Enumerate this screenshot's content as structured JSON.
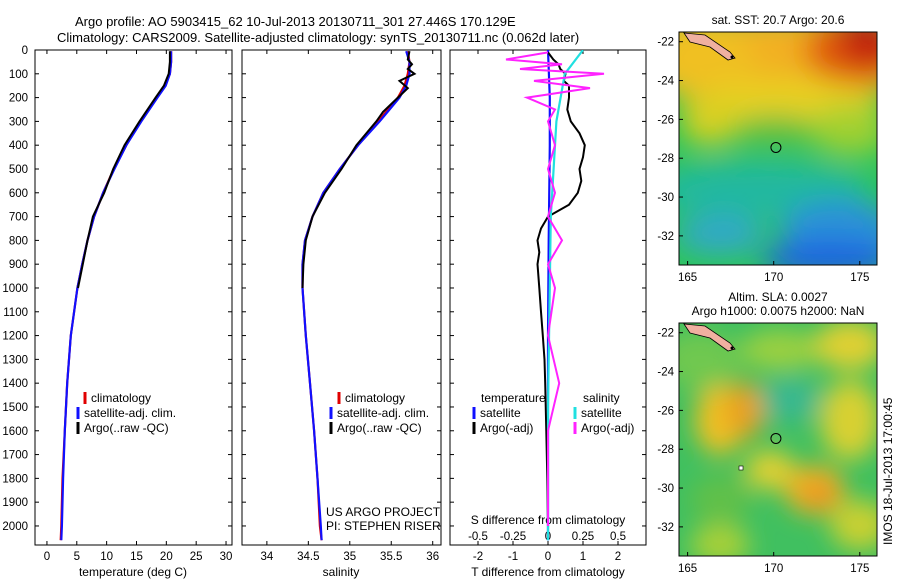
{
  "header": {
    "line1": "Argo profile: AO 5903415_62 10-Jul-2013 20130711_301 27.446S 170.129E",
    "line2": "Climatology: CARS2009. Satellite-adjusted climatology: synTS_20130711.nc (0.062d later)"
  },
  "side_stamp": "IMOS 18-Jul-2013 17:00:45",
  "credits": {
    "project": "US ARGO PROJECT",
    "pi": "PI: STEPHEN RISER"
  },
  "map_titles": {
    "sst": "sat. SST: 20.7 Argo: 20.6",
    "sla1": "Altim. SLA: 0.0027",
    "sla2": "Argo h1000: 0.0075 h2000: NaN"
  },
  "legend_panel_diff": {
    "temp_header": "temperature",
    "sal_header": "salinity",
    "satellite": "satellite",
    "argo": "Argo(-adj)",
    "s_axis_label": "S difference from climatology"
  },
  "colors": {
    "climatology": "#e00000",
    "satellite": "#1010ff",
    "argo": "#000000",
    "sal_satellite": "#20e0e0",
    "sal_argo": "#ff22ff"
  },
  "chart_data": [
    {
      "type": "line",
      "xlabel": "temperature (deg C)",
      "ylabel": "",
      "xlim": [
        -2,
        31
      ],
      "ylim": [
        2080,
        0
      ],
      "x_ticks": [
        0,
        5,
        10,
        15,
        20,
        25,
        30
      ],
      "y_ticks": [
        0,
        100,
        200,
        300,
        400,
        500,
        600,
        700,
        800,
        900,
        1000,
        1100,
        1200,
        1300,
        1400,
        1500,
        1600,
        1700,
        1800,
        1900,
        2000
      ],
      "legend": [
        "climatology",
        "satellite-adj. clim.",
        "Argo(..raw -QC)"
      ],
      "series": [
        {
          "name": "climatology",
          "depth": [
            5,
            50,
            100,
            150,
            200,
            300,
            400,
            500,
            600,
            700,
            800,
            900,
            1000,
            1200,
            1400,
            1600,
            1800,
            2000,
            2060
          ],
          "values": [
            20.8,
            20.8,
            20.6,
            19.8,
            18.4,
            15.6,
            13.3,
            11.2,
            9.4,
            7.9,
            6.8,
            5.9,
            5.1,
            4.0,
            3.4,
            3.0,
            2.6,
            2.4,
            2.3
          ]
        },
        {
          "name": "satellite-adj. clim.",
          "depth": [
            5,
            50,
            100,
            150,
            200,
            300,
            400,
            500,
            600,
            700,
            800,
            900,
            1000,
            1200,
            1400,
            1600,
            1800,
            2000,
            2060
          ],
          "values": [
            20.8,
            20.8,
            20.6,
            19.9,
            18.5,
            15.8,
            13.3,
            11.3,
            9.4,
            7.9,
            6.8,
            5.9,
            5.1,
            4.0,
            3.4,
            3.0,
            2.7,
            2.5,
            2.4
          ]
        },
        {
          "name": "Argo(..raw -QC)",
          "depth": [
            5,
            50,
            100,
            150,
            200,
            300,
            400,
            500,
            600,
            700,
            800,
            900,
            1000
          ],
          "values": [
            20.6,
            20.6,
            20.4,
            19.6,
            18.2,
            15.5,
            13.0,
            11.1,
            9.6,
            7.7,
            6.8,
            6.0,
            5.2
          ]
        }
      ]
    },
    {
      "type": "line",
      "xlabel": "salinity",
      "xlim": [
        33.7,
        36.1
      ],
      "ylim": [
        2080,
        0
      ],
      "x_ticks": [
        34,
        34.5,
        35,
        35.5,
        36
      ],
      "legend": [
        "climatology",
        "satellite-adj. clim.",
        "Argo(..raw -QC)"
      ],
      "series": [
        {
          "name": "climatology",
          "depth": [
            5,
            50,
            100,
            150,
            200,
            300,
            400,
            500,
            600,
            700,
            800,
            900,
            1000,
            1200,
            1400,
            1600,
            1800,
            2000,
            2060
          ],
          "values": [
            35.7,
            35.72,
            35.7,
            35.66,
            35.58,
            35.34,
            35.1,
            34.88,
            34.68,
            34.55,
            34.46,
            34.43,
            34.43,
            34.47,
            34.52,
            34.57,
            34.61,
            34.64,
            34.66
          ]
        },
        {
          "name": "satellite-adj. clim.",
          "depth": [
            5,
            50,
            100,
            150,
            200,
            300,
            400,
            500,
            600,
            700,
            800,
            900,
            1000,
            1200,
            1400,
            1600,
            1800,
            2000,
            2060
          ],
          "values": [
            35.68,
            35.72,
            35.72,
            35.68,
            35.6,
            35.36,
            35.1,
            34.88,
            34.68,
            34.55,
            34.46,
            34.43,
            34.43,
            34.47,
            34.52,
            34.57,
            34.61,
            34.65,
            34.66
          ]
        },
        {
          "name": "Argo(..raw -QC)",
          "depth": [
            5,
            40,
            60,
            80,
            100,
            130,
            160,
            200,
            260,
            300,
            400,
            500,
            600,
            700,
            800,
            900,
            1000
          ],
          "values": [
            35.72,
            35.7,
            35.75,
            35.7,
            35.78,
            35.6,
            35.7,
            35.58,
            35.4,
            35.32,
            35.08,
            34.9,
            34.7,
            34.55,
            34.47,
            34.44,
            34.43
          ]
        }
      ]
    },
    {
      "type": "line",
      "xlabel": "T difference from climatology",
      "xlim": [
        -2.8,
        2.8
      ],
      "ylim": [
        2080,
        0
      ],
      "x_ticks": [
        -2,
        -1,
        0,
        1,
        2
      ],
      "top_axis_ticks": [
        "-0.5",
        "-0.25",
        "0",
        "0.25",
        "0.5"
      ],
      "top_axis_label": "S difference from climatology",
      "series": [
        {
          "name": "temperature satellite",
          "depth": [
            0,
            200,
            400,
            800,
            1200,
            2060
          ],
          "values": [
            0.0,
            0.05,
            0.05,
            0.02,
            0.0,
            0.0
          ]
        },
        {
          "name": "temperature Argo(-adj)",
          "depth": [
            10,
            40,
            60,
            80,
            100,
            130,
            150,
            200,
            250,
            300,
            350,
            400,
            450,
            500,
            550,
            600,
            650,
            700,
            750,
            800,
            850,
            900,
            1000,
            1100,
            1200,
            1300,
            1400,
            1600,
            1800,
            2000
          ],
          "values": [
            0.0,
            0.15,
            0.3,
            0.35,
            0.5,
            0.45,
            0.6,
            0.6,
            0.55,
            0.65,
            0.9,
            1.05,
            1.0,
            0.9,
            0.95,
            0.85,
            0.6,
            0.0,
            -0.2,
            -0.3,
            -0.25,
            -0.3,
            -0.25,
            -0.2,
            -0.15,
            -0.1,
            -0.08,
            -0.05,
            -0.02,
            0.0
          ]
        },
        {
          "name": "salinity satellite",
          "depth": [
            0,
            100,
            300,
            700,
            1500,
            2060
          ],
          "values": [
            0.25,
            0.12,
            0.06,
            0.02,
            0.0,
            0.0
          ]
        },
        {
          "name": "salinity Argo(-adj)",
          "depth": [
            10,
            40,
            60,
            80,
            100,
            130,
            160,
            200,
            250,
            300,
            400,
            500,
            600,
            700,
            800,
            900,
            1000,
            1200,
            1400,
            1600,
            1800,
            2000
          ],
          "values": [
            0.0,
            -0.3,
            0.1,
            -0.2,
            0.4,
            -0.1,
            0.3,
            -0.15,
            0.05,
            0.0,
            0.05,
            0.0,
            0.05,
            0.0,
            0.1,
            0.0,
            0.05,
            0.0,
            0.08,
            0.0,
            0.0,
            0.0
          ]
        }
      ]
    },
    {
      "type": "heatmap",
      "title": "sat. SST: 20.7 Argo: 20.6",
      "x_ticks": [
        165,
        170,
        175
      ],
      "y_ticks": [
        -22,
        -24,
        -26,
        -28,
        -30,
        -32
      ],
      "xlim": [
        164.5,
        176
      ],
      "ylim": [
        -33.5,
        -21.5
      ],
      "marker": {
        "lon": 170.129,
        "lat": -27.446
      }
    },
    {
      "type": "heatmap",
      "title": "Altim. SLA: 0.0027",
      "x_ticks": [
        165,
        170,
        175
      ],
      "y_ticks": [
        -22,
        -24,
        -26,
        -28,
        -30,
        -32
      ],
      "xlim": [
        164.5,
        176
      ],
      "ylim": [
        -33.5,
        -21.5
      ],
      "marker": {
        "lon": 170.129,
        "lat": -27.446
      }
    }
  ]
}
